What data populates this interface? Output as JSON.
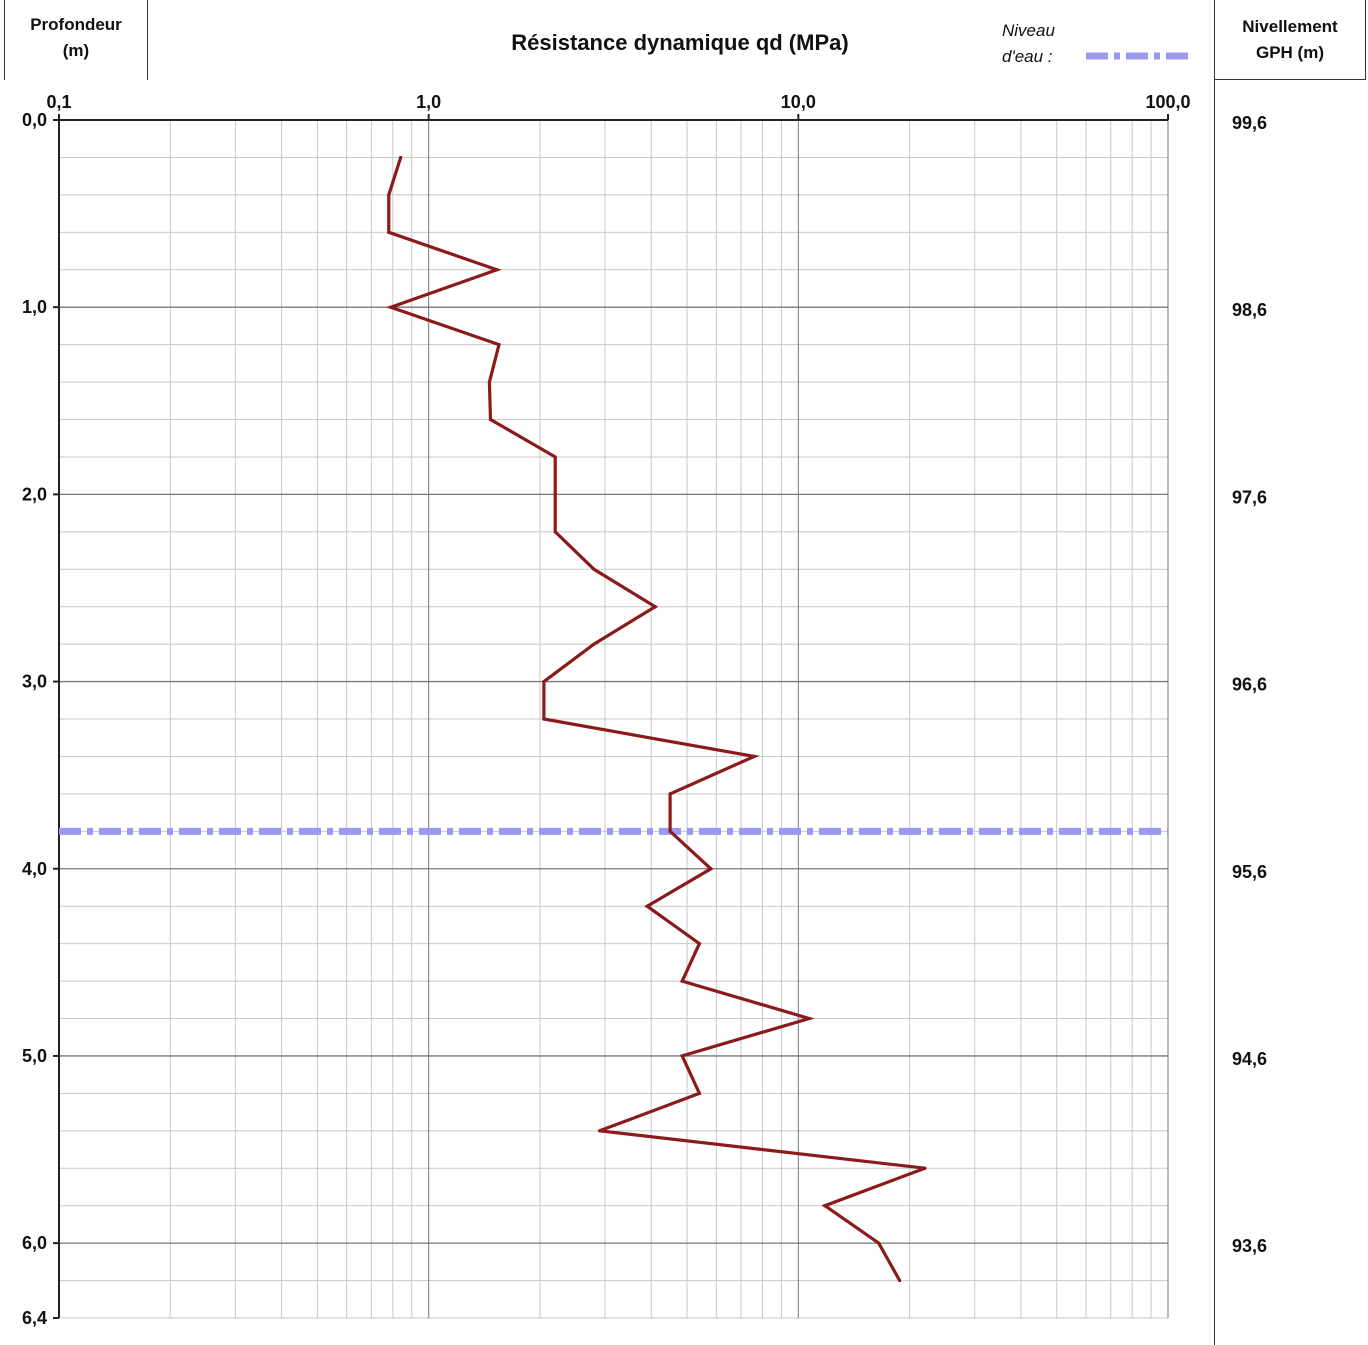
{
  "header": {
    "depth_title_line1": "Profondeur",
    "depth_title_line2": "(m)",
    "level_title_line1": "Nivellement",
    "level_title_line2": "GPH (m)",
    "water_label_line1": "Niveau",
    "water_label_line2": "d'eau :"
  },
  "colors": {
    "series": "#8b1a1a",
    "water": "#9999ee",
    "grid_major": "#777777",
    "grid_minor": "#c8c8c8"
  },
  "chart_data": {
    "type": "line",
    "title": "Résistance dynamique qd (MPa)",
    "xlabel": "",
    "ylabel": "",
    "x_scale": "log",
    "xlim": [
      0.1,
      100
    ],
    "ylim": [
      0,
      6.4
    ],
    "y_inverted": true,
    "x_tick_labels": [
      "0,1",
      "1,0",
      "10,0",
      "100,0"
    ],
    "x_tick_values": [
      0.1,
      1,
      10,
      100
    ],
    "y_tick_labels": [
      "0,0",
      "1,0",
      "2,0",
      "3,0",
      "4,0",
      "5,0",
      "6,0",
      "6,4"
    ],
    "y_tick_values": [
      0,
      1,
      2,
      3,
      4,
      5,
      6,
      6.4
    ],
    "grid": true,
    "series": [
      {
        "values": [
          {
            "depth": 0.2,
            "qd": 0.84
          },
          {
            "depth": 0.4,
            "qd": 0.78
          },
          {
            "depth": 0.6,
            "qd": 0.78
          },
          {
            "depth": 0.8,
            "qd": 1.53
          },
          {
            "depth": 1.0,
            "qd": 0.79
          },
          {
            "depth": 1.2,
            "qd": 1.55
          },
          {
            "depth": 1.4,
            "qd": 1.46
          },
          {
            "depth": 1.6,
            "qd": 1.47
          },
          {
            "depth": 1.8,
            "qd": 2.2
          },
          {
            "depth": 2.0,
            "qd": 2.2
          },
          {
            "depth": 2.2,
            "qd": 2.2
          },
          {
            "depth": 2.4,
            "qd": 2.8
          },
          {
            "depth": 2.6,
            "qd": 4.1
          },
          {
            "depth": 2.8,
            "qd": 2.8
          },
          {
            "depth": 3.0,
            "qd": 2.05
          },
          {
            "depth": 3.2,
            "qd": 2.05
          },
          {
            "depth": 3.4,
            "qd": 7.6
          },
          {
            "depth": 3.6,
            "qd": 4.5
          },
          {
            "depth": 3.8,
            "qd": 4.5
          },
          {
            "depth": 4.0,
            "qd": 5.8
          },
          {
            "depth": 4.2,
            "qd": 3.9
          },
          {
            "depth": 4.4,
            "qd": 5.4
          },
          {
            "depth": 4.6,
            "qd": 4.85
          },
          {
            "depth": 4.8,
            "qd": 10.7
          },
          {
            "depth": 5.0,
            "qd": 4.85
          },
          {
            "depth": 5.2,
            "qd": 5.4
          },
          {
            "depth": 5.4,
            "qd": 2.9
          },
          {
            "depth": 5.6,
            "qd": 22.0
          },
          {
            "depth": 5.8,
            "qd": 11.8
          },
          {
            "depth": 6.0,
            "qd": 16.5
          },
          {
            "depth": 6.2,
            "qd": 18.8
          }
        ]
      }
    ],
    "water_level_depth": 3.8,
    "elevation_labels": [
      {
        "depth": 0,
        "label": "99,6"
      },
      {
        "depth": 1,
        "label": "98,6"
      },
      {
        "depth": 2,
        "label": "97,6"
      },
      {
        "depth": 3,
        "label": "96,6"
      },
      {
        "depth": 4,
        "label": "95,6"
      },
      {
        "depth": 5,
        "label": "94,6"
      },
      {
        "depth": 6,
        "label": "93,6"
      }
    ]
  }
}
